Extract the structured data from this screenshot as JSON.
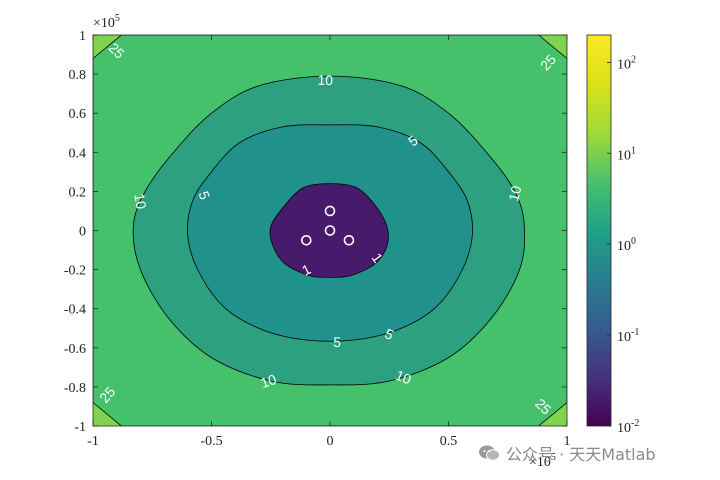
{
  "chart_data": {
    "type": "contour",
    "xlim": [
      -100000,
      100000
    ],
    "ylim": [
      -100000,
      100000
    ],
    "x_ticks": [
      {
        "value": -100000,
        "label": "-1"
      },
      {
        "value": -50000,
        "label": "-0.5"
      },
      {
        "value": 0,
        "label": "0"
      },
      {
        "value": 50000,
        "label": "0.5"
      },
      {
        "value": 100000,
        "label": "1"
      }
    ],
    "y_ticks": [
      {
        "value": 100000,
        "label": "1"
      },
      {
        "value": 80000,
        "label": "0.8"
      },
      {
        "value": 60000,
        "label": "0.6"
      },
      {
        "value": 40000,
        "label": "0.4"
      },
      {
        "value": 20000,
        "label": "0.2"
      },
      {
        "value": 0,
        "label": "0"
      },
      {
        "value": -20000,
        "label": "-0.2"
      },
      {
        "value": -40000,
        "label": "-0.4"
      },
      {
        "value": -60000,
        "label": "-0.6"
      },
      {
        "value": -80000,
        "label": "-0.8"
      },
      {
        "value": -100000,
        "label": "-1"
      }
    ],
    "x_exponent": {
      "base": "×10",
      "power": "5"
    },
    "y_exponent": {
      "base": "×10",
      "power": "5"
    },
    "contour_levels": [
      1,
      5,
      10,
      25
    ],
    "contour_labels": [
      {
        "x": -10000,
        "y": -20000,
        "text": "1"
      },
      {
        "x": 20000,
        "y": -14000,
        "text": "1"
      },
      {
        "x": -53000,
        "y": 18000,
        "text": "5"
      },
      {
        "x": 35000,
        "y": 46000,
        "text": "5"
      },
      {
        "x": 3000,
        "y": -57000,
        "text": "5"
      },
      {
        "x": 25000,
        "y": -53000,
        "text": "5"
      },
      {
        "x": -2000,
        "y": 77000,
        "text": "10"
      },
      {
        "x": -80000,
        "y": 15000,
        "text": "10"
      },
      {
        "x": 78000,
        "y": 19000,
        "text": "10"
      },
      {
        "x": -26000,
        "y": -77000,
        "text": "10"
      },
      {
        "x": 31000,
        "y": -75000,
        "text": "10"
      },
      {
        "x": -90000,
        "y": 92000,
        "text": "25"
      },
      {
        "x": 92000,
        "y": 86000,
        "text": "25"
      },
      {
        "x": -94000,
        "y": -84000,
        "text": "25"
      },
      {
        "x": 90000,
        "y": -90000,
        "text": "25"
      }
    ],
    "markers": [
      {
        "x": 0,
        "y": 10000
      },
      {
        "x": 0,
        "y": 0
      },
      {
        "x": -10000,
        "y": -5000
      },
      {
        "x": 8000,
        "y": -5000
      }
    ],
    "colorbar": {
      "scale": "log",
      "range": [
        0.01,
        200
      ],
      "colormap": "viridis",
      "ticks": [
        {
          "value": 0.01,
          "base": "10",
          "power": "-2"
        },
        {
          "value": 0.1,
          "base": "10",
          "power": "-1"
        },
        {
          "value": 1,
          "base": "10",
          "power": "0"
        },
        {
          "value": 10,
          "base": "10",
          "power": "1"
        },
        {
          "value": 100,
          "base": "10",
          "power": "2"
        }
      ]
    },
    "fill_colors": {
      "below_1": "#481a6c",
      "from_1_to_5": "#21918c",
      "from_5_to_10": "#2ca07f",
      "from_10_to_25": "#45c06b",
      "above_25": "#7fd34e"
    },
    "grid": false
  },
  "watermark": {
    "text": "公众号 · 天天Matlab",
    "icon": "wechat-icon"
  }
}
